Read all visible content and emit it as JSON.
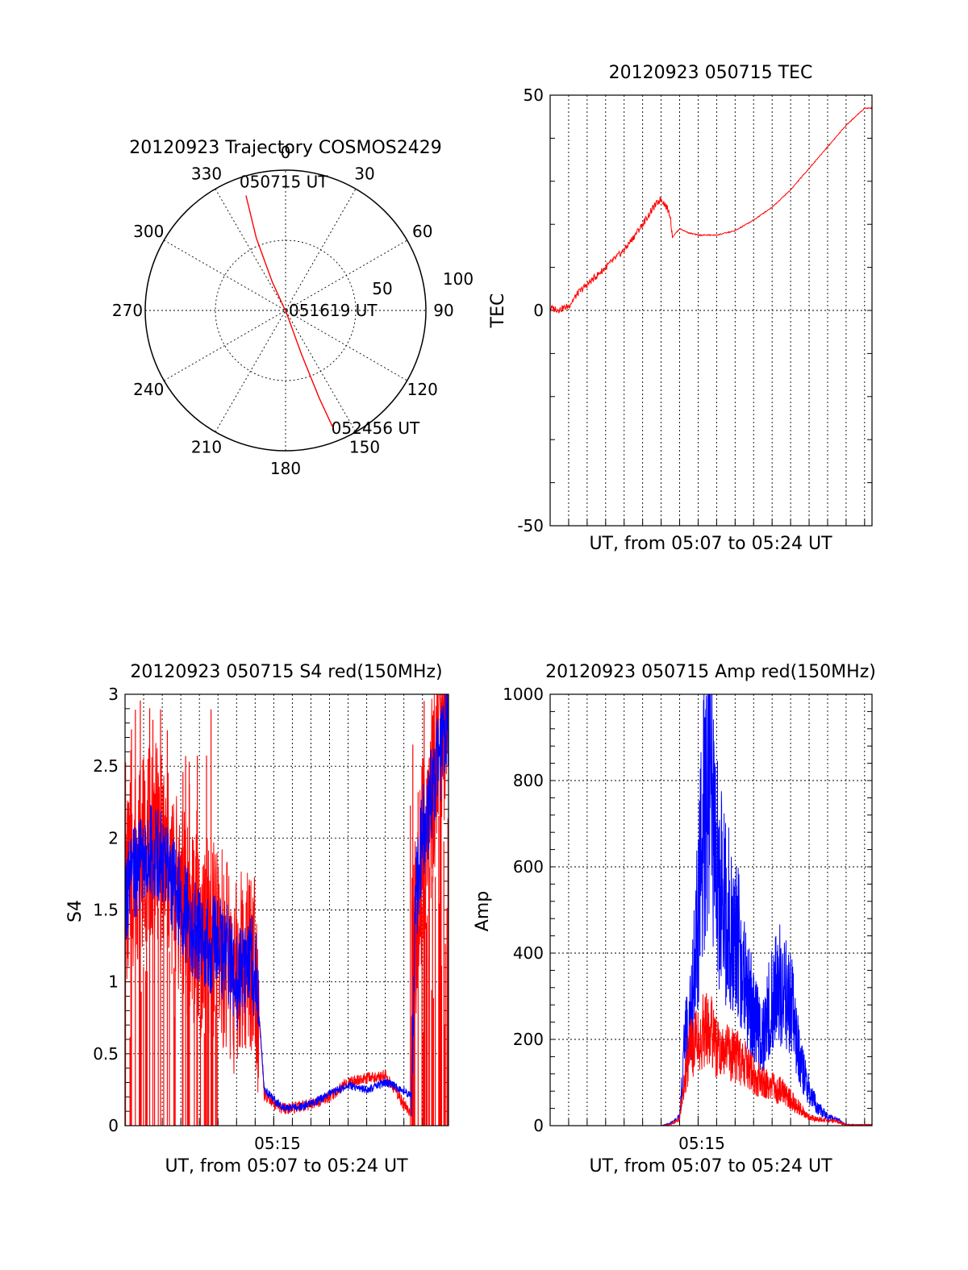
{
  "chart_data": [
    {
      "type": "polar",
      "title": "20120923 Trajectory COSMOS2429",
      "azimuth_labels": [
        "0",
        "30",
        "60",
        "90",
        "120",
        "150",
        "180",
        "210",
        "240",
        "270",
        "300",
        "330"
      ],
      "radial_labels": [
        "50",
        "100"
      ],
      "trajectory": [
        {
          "azimuth": 341,
          "elevation": 12
        },
        {
          "azimuth": 338,
          "elevation": 40
        },
        {
          "azimuth": 335,
          "elevation": 70
        },
        {
          "azimuth": 160,
          "elevation": 88
        },
        {
          "azimuth": 160,
          "elevation": 60
        },
        {
          "azimuth": 159,
          "elevation": 30
        },
        {
          "azimuth": 158,
          "elevation": 9
        }
      ],
      "annotations": [
        {
          "text": "050715 UT",
          "azimuth": 341,
          "elevation": 12
        },
        {
          "text": "051619 UT",
          "azimuth": 0,
          "elevation": 90
        },
        {
          "text": "052456 UT",
          "azimuth": 158,
          "elevation": 9
        }
      ],
      "colors": {
        "trajectory": "#ff0000"
      }
    },
    {
      "type": "line",
      "title": "20120923 050715 TEC",
      "ylabel": "TEC",
      "xlabel": "UT, from 05:07 to 05:24 UT",
      "ylim": [
        -50,
        50
      ],
      "yticks": [
        "-50",
        "0",
        "50"
      ],
      "x_range_minutes": [
        0,
        17.4
      ],
      "series": [
        {
          "color": "#ff0000",
          "x": [
            0,
            0.5,
            1,
            1.5,
            2,
            2.5,
            3,
            3.5,
            4,
            4.5,
            5,
            5.3,
            5.6,
            6.0,
            6.3,
            6.5,
            6.6,
            7,
            7.5,
            8,
            9,
            10,
            11,
            12,
            13,
            14,
            15,
            16,
            16.5,
            17,
            17.4
          ],
          "values": [
            0.5,
            0.2,
            1,
            4,
            6,
            8,
            10,
            12,
            14,
            17,
            20,
            22,
            24,
            26,
            24,
            22,
            17,
            19,
            18,
            17.5,
            17.5,
            18.5,
            21,
            24,
            28,
            33,
            38,
            43,
            45,
            47,
            47
          ]
        }
      ],
      "colors": {
        "line": "#ff0000"
      }
    },
    {
      "type": "line",
      "title": "20120923 050715 S4 red(150MHz)",
      "ylabel": "S4",
      "xlabel": "UT, from 05:07 to 05:24 UT",
      "xtick_label": "05:15",
      "ylim": [
        0,
        3
      ],
      "yticks": [
        "0",
        "0.5",
        "1",
        "1.5",
        "2",
        "2.5",
        "3"
      ],
      "x_range_minutes": [
        0,
        17.4
      ],
      "series": [
        {
          "name": "red",
          "color": "#ff0000",
          "x": [
            0,
            0.5,
            1,
            1.5,
            2,
            2.5,
            3,
            3.5,
            4,
            4.5,
            5,
            5.5,
            6,
            6.5,
            7,
            7.5,
            8,
            8.5,
            9,
            10,
            11,
            12,
            13,
            14,
            15,
            15.4,
            15.6,
            16,
            16.5,
            17,
            17.4
          ],
          "values": [
            1.6,
            1.8,
            1.9,
            2.0,
            1.9,
            1.7,
            1.6,
            1.4,
            1.3,
            1.3,
            1.25,
            1.2,
            1.0,
            1.2,
            1.2,
            0.2,
            0.15,
            0.12,
            0.12,
            0.15,
            0.2,
            0.3,
            0.33,
            0.35,
            0.15,
            0.07,
            1.4,
            1.9,
            2.3,
            2.7,
            2.9
          ]
        },
        {
          "name": "blue",
          "color": "#0000ff",
          "x": [
            0,
            0.5,
            1,
            1.5,
            2,
            2.5,
            3,
            3.5,
            4,
            4.5,
            5,
            5.5,
            6,
            6.5,
            7,
            7.5,
            8,
            8.5,
            9,
            10,
            11,
            12,
            13,
            14,
            15,
            15.4,
            15.6,
            16,
            16.5,
            17,
            17.4
          ],
          "values": [
            1.55,
            1.75,
            1.85,
            1.9,
            1.85,
            1.7,
            1.55,
            1.4,
            1.3,
            1.25,
            1.25,
            1.2,
            1.0,
            1.15,
            1.1,
            0.25,
            0.18,
            0.12,
            0.12,
            0.15,
            0.22,
            0.28,
            0.25,
            0.3,
            0.25,
            0.2,
            1.5,
            2.0,
            2.3,
            2.6,
            2.8
          ]
        }
      ],
      "colors": {
        "red": "#ff0000",
        "blue": "#0000ff"
      }
    },
    {
      "type": "line",
      "title": "20120923 050715 Amp red(150MHz)",
      "ylabel": "Amp",
      "xlabel": "UT, from 05:07 to 05:24 UT",
      "xtick_label": "05:15",
      "ylim": [
        0,
        1000
      ],
      "yticks": [
        "0",
        "200",
        "400",
        "600",
        "800",
        "1000"
      ],
      "x_range_minutes": [
        0,
        17.4
      ],
      "series": [
        {
          "name": "blue",
          "color": "#0000ff",
          "x": [
            0,
            6,
            6.5,
            7,
            7.3,
            7.6,
            8.0,
            8.3,
            8.6,
            9,
            9.5,
            10,
            10.5,
            11,
            11.5,
            12,
            12.5,
            13,
            13.5,
            14,
            14.5,
            15,
            15.5,
            16,
            17.4
          ],
          "values": [
            0,
            0,
            5,
            20,
            200,
            250,
            500,
            700,
            850,
            600,
            500,
            450,
            350,
            250,
            200,
            300,
            330,
            300,
            150,
            80,
            40,
            20,
            15,
            2,
            2
          ]
        },
        {
          "name": "red",
          "color": "#ff0000",
          "x": [
            0,
            6,
            6.5,
            7,
            7.3,
            7.6,
            8.0,
            8.3,
            8.6,
            9,
            9.5,
            10,
            10.5,
            11,
            11.5,
            12,
            12.5,
            13,
            13.5,
            14,
            14.5,
            15,
            15.5,
            16,
            17.4
          ],
          "values": [
            0,
            0,
            3,
            15,
            120,
            180,
            200,
            220,
            230,
            180,
            170,
            160,
            150,
            120,
            100,
            90,
            80,
            60,
            40,
            20,
            15,
            12,
            10,
            2,
            2
          ]
        }
      ],
      "colors": {
        "red": "#ff0000",
        "blue": "#0000ff"
      }
    }
  ]
}
